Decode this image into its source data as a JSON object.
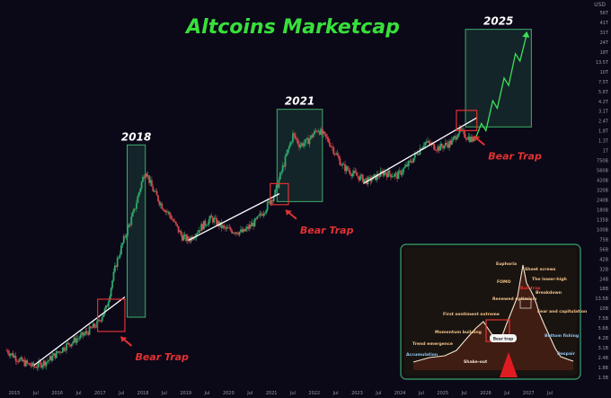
{
  "title": "Altcoins Marketcap",
  "currency_tag": "USD",
  "colors": {
    "background": "#0b0818",
    "title": "#37e03a",
    "candle_up": "#2ea86b",
    "candle_down": "#d6464a",
    "trendline": "#ffffff",
    "box_fill": "#1d4a3f",
    "box_stroke": "#3fae6b",
    "bear_trap": "#e23232"
  },
  "chart_data": {
    "type": "candlestick",
    "y_scale": "log",
    "x_axis_ticks": [
      "2015",
      "Jul",
      "2016",
      "Jul",
      "2017",
      "Jul",
      "2018",
      "Jul",
      "2019",
      "Jul",
      "2020",
      "Jul",
      "2021",
      "Jul",
      "2022",
      "Jul",
      "2023",
      "Jul",
      "2024",
      "Jul",
      "2025",
      "Jul",
      "2026",
      "Jul",
      "2027",
      "Jul"
    ],
    "y_axis_ticks": [
      "USD",
      "56T",
      "41T",
      "31T",
      "24T",
      "18T",
      "13.5T",
      "10T",
      "7.5T",
      "5.6T",
      "4.2T",
      "3.1T",
      "2.4T",
      "1.8T",
      "1.3T",
      "1T",
      "750B",
      "560B",
      "420B",
      "320B",
      "240B",
      "180B",
      "135B",
      "100B",
      "75B",
      "56B",
      "42B",
      "32B",
      "24B",
      "18B",
      "13.5B",
      "10B",
      "7.5B",
      "5.6B",
      "4.2B",
      "3.1B",
      "2.4B",
      "1.8B",
      "1.3B"
    ],
    "series_points": [
      [
        2015.0,
        3500000000.0
      ],
      [
        2015.3,
        2600000000.0
      ],
      [
        2015.6,
        2200000000.0
      ],
      [
        2015.9,
        2600000000.0
      ],
      [
        2016.3,
        4000000000.0
      ],
      [
        2016.7,
        5500000000.0
      ],
      [
        2017.0,
        7500000000.0
      ],
      [
        2017.2,
        12000000000.0
      ],
      [
        2017.4,
        40000000000.0
      ],
      [
        2017.6,
        90000000000.0
      ],
      [
        2017.8,
        180000000000.0
      ],
      [
        2017.95,
        380000000000.0
      ],
      [
        2018.05,
        600000000000.0
      ],
      [
        2018.2,
        350000000000.0
      ],
      [
        2018.4,
        220000000000.0
      ],
      [
        2018.6,
        160000000000.0
      ],
      [
        2018.85,
        90000000000.0
      ],
      [
        2019.0,
        80000000000.0
      ],
      [
        2019.3,
        120000000000.0
      ],
      [
        2019.5,
        150000000000.0
      ],
      [
        2019.8,
        110000000000.0
      ],
      [
        2020.2,
        100000000000.0
      ],
      [
        2020.5,
        140000000000.0
      ],
      [
        2020.7,
        200000000000.0
      ],
      [
        2020.9,
        300000000000.0
      ],
      [
        2021.1,
        700000000000.0
      ],
      [
        2021.3,
        1600000000000.0
      ],
      [
        2021.45,
        1200000000000.0
      ],
      [
        2021.6,
        1300000000000.0
      ],
      [
        2021.85,
        1900000000000.0
      ],
      [
        2022.1,
        1300000000000.0
      ],
      [
        2022.4,
        650000000000.0
      ],
      [
        2022.7,
        500000000000.0
      ],
      [
        2022.95,
        430000000000.0
      ],
      [
        2023.3,
        550000000000.0
      ],
      [
        2023.6,
        500000000000.0
      ],
      [
        2023.9,
        750000000000.0
      ],
      [
        2024.2,
        1300000000000.0
      ],
      [
        2024.5,
        1100000000000.0
      ],
      [
        2024.8,
        1300000000000.0
      ],
      [
        2024.95,
        1800000000000.0
      ],
      [
        2025.15,
        1500000000000.0
      ],
      [
        2025.3,
        1350000000000.0
      ]
    ],
    "projection_points": [
      [
        2025.3,
        1350000000000.0
      ],
      [
        2025.45,
        2200000000000.0
      ],
      [
        2025.55,
        1800000000000.0
      ],
      [
        2025.7,
        4200000000000.0
      ],
      [
        2025.8,
        3400000000000.0
      ],
      [
        2025.95,
        8000000000000.0
      ],
      [
        2026.05,
        6500000000000.0
      ],
      [
        2026.2,
        16000000000000.0
      ],
      [
        2026.3,
        13000000000000.0
      ],
      [
        2026.45,
        28000000000000.0
      ]
    ],
    "cycle_boxes": [
      {
        "label": "2018",
        "x_start": 2017.65,
        "x_end": 2018.05,
        "y_low": 9000000000.0,
        "y_high": 1200000000000.0
      },
      {
        "label": "2021",
        "x_start": 2020.95,
        "x_end": 2021.95,
        "y_low": 240000000000.0,
        "y_high": 3300000000000.0
      },
      {
        "label": "2025",
        "x_start": 2025.1,
        "x_end": 2026.55,
        "y_low": 2000000000000.0,
        "y_high": 32000000000000.0
      }
    ],
    "bear_traps": [
      {
        "label": "Bear Trap",
        "x_start": 2017.0,
        "x_end": 2017.6,
        "y_low": 6000000000.0,
        "y_high": 15000000000.0
      },
      {
        "label": "Bear Trap",
        "x_start": 2020.8,
        "x_end": 2021.2,
        "y_low": 220000000000.0,
        "y_high": 400000000000.0
      },
      {
        "label": "Bear Trap",
        "x_start": 2024.9,
        "x_end": 2025.35,
        "y_low": 1800000000000.0,
        "y_high": 3200000000000.0
      }
    ],
    "trendlines": [
      {
        "from": [
          2015.6,
          2300000000.0
        ],
        "to": [
          2017.6,
          16000000000.0
        ]
      },
      {
        "from": [
          2019.0,
          80000000000.0
        ],
        "to": [
          2021.0,
          300000000000.0
        ]
      },
      {
        "from": [
          2022.85,
          400000000000.0
        ],
        "to": [
          2025.35,
          2600000000000.0
        ]
      }
    ]
  },
  "inset": {
    "labels": {
      "euphoria": "Euphoria",
      "sheet_screws": "Sheet screws",
      "fomo": "FOMO",
      "the_lower_high": "The lower-high",
      "bull_trap": "Bull trap",
      "breakdown": "Breakdown",
      "renewed_optimism": "Renewed optimism",
      "fear_and_capitulation": "Fear and capitulation",
      "first_sentiment_extreme": "First sentiment extreme",
      "momentum_building": "Momentum building",
      "bear_trap": "Bear trap",
      "trend_emergence": "Trend emergence",
      "bottom_fishing": "Bottom fishing",
      "accumulation": "Accumulation",
      "shake_out": "Shake-out",
      "despair": "Despair"
    }
  }
}
